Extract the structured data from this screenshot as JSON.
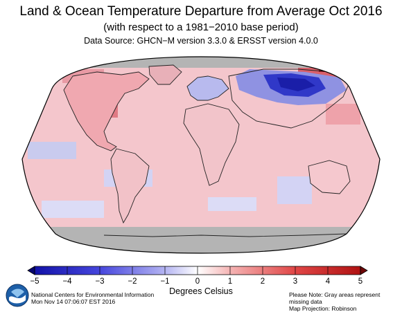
{
  "title": "Land & Ocean Temperature Departure from Average Oct 2016",
  "subtitle": "(with respect to a 1981−2010 base period)",
  "source": "Data Source: GHCN−M version 3.3.0 & ERSST version 4.0.0",
  "legend": {
    "units": "Degrees Celsius",
    "ticks": [
      "−5",
      "−4",
      "−3",
      "−2",
      "−1",
      "0",
      "1",
      "2",
      "3",
      "4",
      "5"
    ],
    "range": [
      -5,
      5
    ],
    "colors": [
      "#00008b",
      "#1c1ccc",
      "#4646dd",
      "#7878e6",
      "#a8a8f0",
      "#d2d2f8",
      "#fad2d2",
      "#f5a8a8",
      "#ee7878",
      "#e04646",
      "#c81c1c",
      "#8b0000"
    ]
  },
  "footer": {
    "org": "National Centers for Environmental Information",
    "timestamp": "Mon Nov 14 07:06:07 EST 2016",
    "note": "Please Note: Gray areas represent missing data",
    "projection": "Map Projection: Robinson"
  },
  "logo_icon": "noaa-logo-icon",
  "map": {
    "missing_color": "#b4b4b4",
    "ocean_base_color": "#f4c6cc"
  }
}
